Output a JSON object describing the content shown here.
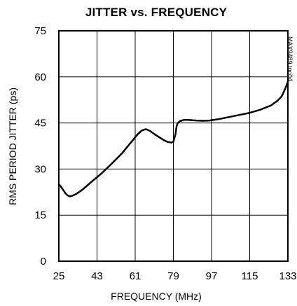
{
  "chart_data": {
    "type": "line",
    "title": "JITTER vs. FREQUENCY",
    "xlabel": "FREQUENCY (MHz)",
    "ylabel": "RMS PERIOD JITTER (ps)",
    "xlim": [
      25,
      133
    ],
    "ylim": [
      0,
      75
    ],
    "xticks": [
      25,
      43,
      61,
      79,
      97,
      115,
      133
    ],
    "yticks": [
      0,
      15,
      30,
      45,
      60,
      75
    ],
    "grid": true,
    "annotation": "MAX9489 toc04",
    "colors": {
      "line": "#000000",
      "grid": "#000000",
      "background": "#ffffff"
    },
    "series": [
      {
        "x": [
          25,
          26,
          27,
          28,
          29,
          30,
          31,
          33,
          36,
          40,
          45,
          50,
          55,
          60,
          62,
          64,
          66,
          68,
          70,
          72,
          74,
          76,
          78,
          79,
          80,
          80.5,
          81,
          82,
          84,
          86,
          88,
          90,
          93,
          96,
          100,
          105,
          110,
          115,
          120,
          125,
          128,
          130,
          131,
          132,
          133
        ],
        "y": [
          25,
          24.3,
          23.2,
          22.2,
          21.5,
          21.1,
          21.2,
          21.8,
          23.2,
          25.6,
          28.5,
          31.8,
          35.3,
          39.5,
          41.2,
          42.5,
          43.0,
          42.4,
          41.4,
          40.5,
          39.6,
          38.9,
          38.6,
          38.9,
          41.3,
          43.8,
          44.9,
          45.6,
          46.0,
          46.0,
          45.9,
          45.8,
          45.7,
          45.8,
          46.2,
          46.9,
          47.6,
          48.3,
          49.3,
          50.7,
          52.2,
          53.6,
          55.0,
          56.6,
          58.5
        ]
      }
    ]
  }
}
